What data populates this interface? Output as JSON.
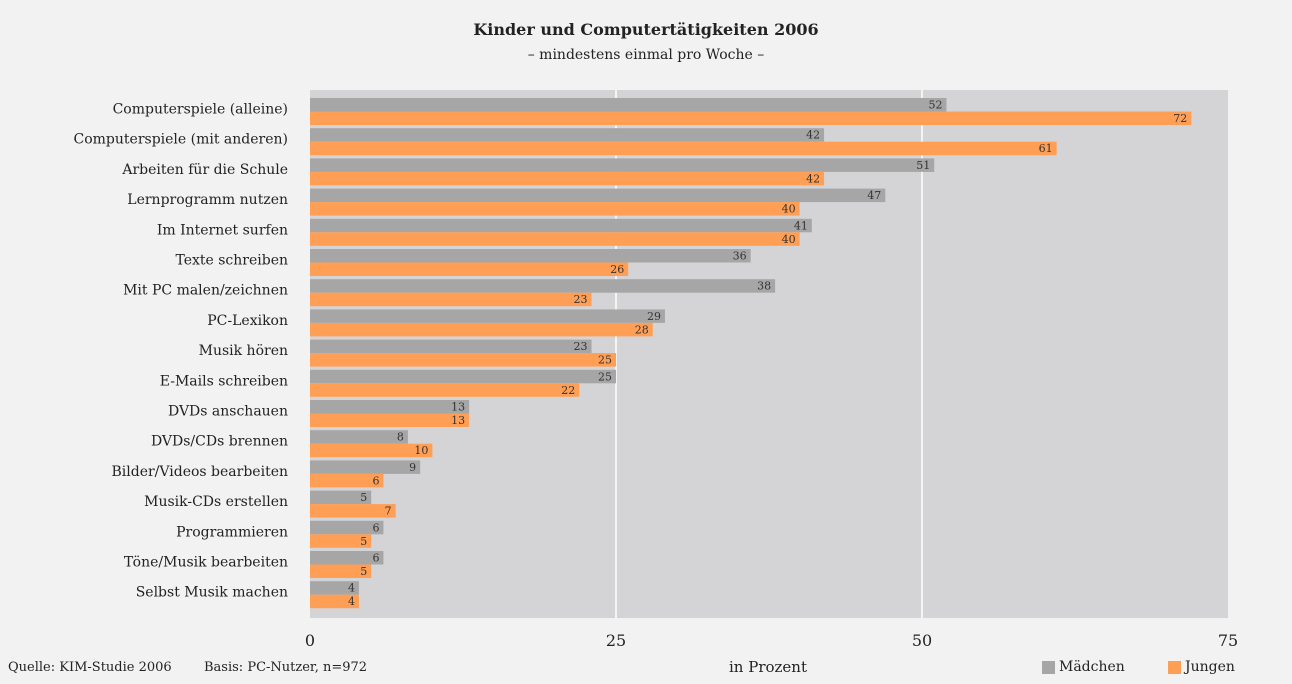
{
  "chart_data": {
    "type": "bar",
    "orientation": "horizontal",
    "title": "Kinder und Computertätigkeiten 2006",
    "subtitle": "– mindestens einmal pro Woche –",
    "xlabel": "in Prozent",
    "xlim": [
      0,
      75
    ],
    "xticks": [
      0,
      25,
      50,
      75
    ],
    "grid": true,
    "legend_position": "bottom-right",
    "categories": [
      "Computerspiele (alleine)",
      "Computerspiele (mit anderen)",
      "Arbeiten für die Schule",
      "Lernprogramm nutzen",
      "Im Internet surfen",
      "Texte schreiben",
      "Mit PC malen/zeichnen",
      "PC-Lexikon",
      "Musik hören",
      "E-Mails schreiben",
      "DVDs anschauen",
      "DVDs/CDs brennen",
      "Bilder/Videos bearbeiten",
      "Musik-CDs erstellen",
      "Programmieren",
      "Töne/Musik bearbeiten",
      "Selbst Musik machen"
    ],
    "series": [
      {
        "name": "Mädchen",
        "color": "#a6a6a6",
        "values": [
          52,
          42,
          51,
          47,
          41,
          36,
          38,
          29,
          23,
          25,
          13,
          8,
          9,
          5,
          6,
          6,
          4
        ]
      },
      {
        "name": "Jungen",
        "color": "#ff9f55",
        "values": [
          72,
          61,
          42,
          40,
          40,
          26,
          23,
          28,
          25,
          22,
          13,
          10,
          6,
          7,
          5,
          5,
          4
        ]
      }
    ]
  },
  "footer": {
    "source": "Quelle: KIM-Studie 2006",
    "basis": "Basis: PC-Nutzer, n=972"
  },
  "colors": {
    "plot_background": "#d4d4d6",
    "page_background": "#f2f2f2",
    "grid": "#ffffff"
  }
}
